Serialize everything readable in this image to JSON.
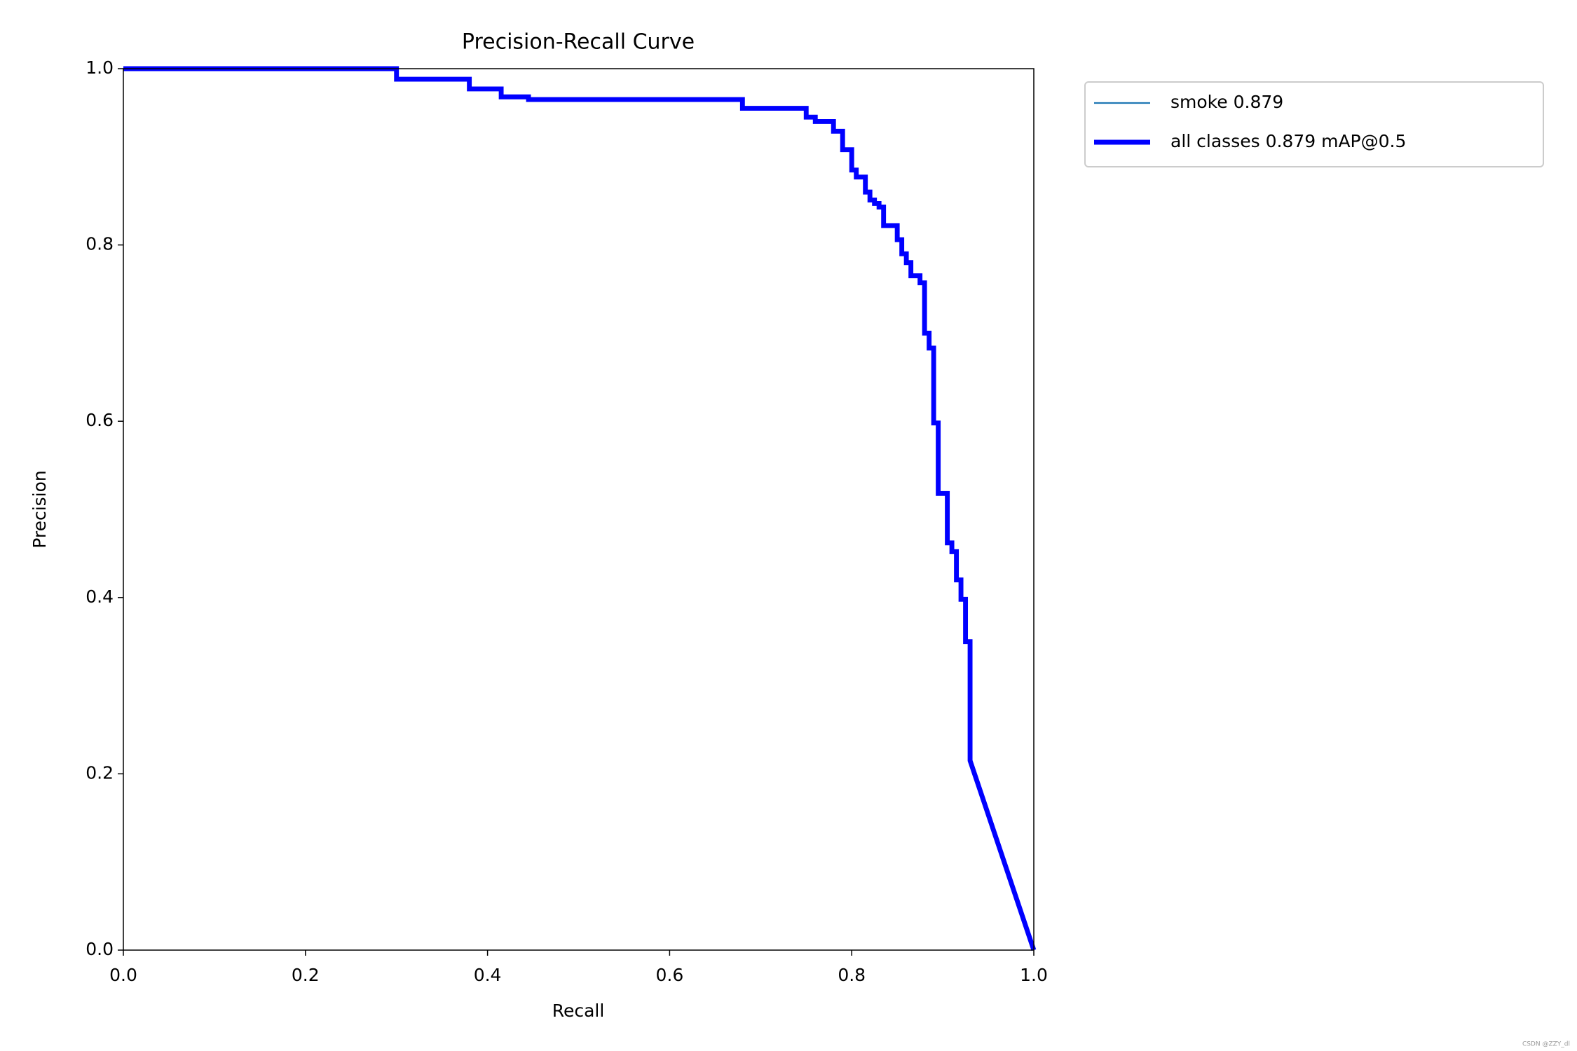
{
  "chart_data": {
    "type": "line",
    "title": "Precision-Recall Curve",
    "x_label": "Recall",
    "y_label": "Precision",
    "x": [
      0,
      0.3,
      0.3,
      0.38,
      0.38,
      0.415,
      0.415,
      0.445,
      0.445,
      0.68,
      0.68,
      0.75,
      0.75,
      0.76,
      0.76,
      0.78,
      0.78,
      0.79,
      0.79,
      0.8,
      0.8,
      0.805,
      0.805,
      0.815,
      0.815,
      0.82,
      0.82,
      0.825,
      0.825,
      0.83,
      0.83,
      0.835,
      0.835,
      0.85,
      0.85,
      0.855,
      0.855,
      0.86,
      0.86,
      0.865,
      0.865,
      0.875,
      0.875,
      0.88,
      0.88,
      0.885,
      0.885,
      0.89,
      0.89,
      0.895,
      0.895,
      0.905,
      0.905,
      0.91,
      0.91,
      0.915,
      0.915,
      0.92,
      0.92,
      0.925,
      0.925,
      0.93,
      0.93,
      1.0
    ],
    "series": [
      {
        "name": "smoke 0.879",
        "color": "#1f77b4",
        "linewidth": 1,
        "values": [
          1.0,
          1.0,
          0.988,
          0.988,
          0.977,
          0.977,
          0.968,
          0.968,
          0.965,
          0.965,
          0.955,
          0.955,
          0.945,
          0.945,
          0.94,
          0.94,
          0.929,
          0.929,
          0.908,
          0.908,
          0.885,
          0.885,
          0.877,
          0.877,
          0.86,
          0.86,
          0.851,
          0.851,
          0.847,
          0.847,
          0.843,
          0.843,
          0.822,
          0.822,
          0.806,
          0.806,
          0.79,
          0.79,
          0.78,
          0.78,
          0.765,
          0.765,
          0.757,
          0.757,
          0.7,
          0.7,
          0.683,
          0.683,
          0.598,
          0.598,
          0.518,
          0.518,
          0.462,
          0.462,
          0.452,
          0.452,
          0.42,
          0.42,
          0.398,
          0.398,
          0.35,
          0.35,
          0.215,
          0.0
        ]
      },
      {
        "name": "all classes 0.879 mAP@0.5",
        "color": "#0000ff",
        "linewidth": 3,
        "values": [
          1.0,
          1.0,
          0.988,
          0.988,
          0.977,
          0.977,
          0.968,
          0.968,
          0.965,
          0.965,
          0.955,
          0.955,
          0.945,
          0.945,
          0.94,
          0.94,
          0.929,
          0.929,
          0.908,
          0.908,
          0.885,
          0.885,
          0.877,
          0.877,
          0.86,
          0.86,
          0.851,
          0.851,
          0.847,
          0.847,
          0.843,
          0.843,
          0.822,
          0.822,
          0.806,
          0.806,
          0.79,
          0.79,
          0.78,
          0.78,
          0.765,
          0.765,
          0.757,
          0.757,
          0.7,
          0.7,
          0.683,
          0.683,
          0.598,
          0.598,
          0.518,
          0.518,
          0.462,
          0.462,
          0.452,
          0.452,
          0.42,
          0.42,
          0.398,
          0.398,
          0.35,
          0.35,
          0.215,
          0.0
        ]
      }
    ],
    "xlim": [
      0,
      1
    ],
    "ylim": [
      0,
      1
    ],
    "xticks": [
      {
        "value": 0,
        "label": "0.0"
      },
      0.2,
      0.4,
      0.6,
      0.8,
      {
        "value": 1,
        "label": "1.0"
      }
    ],
    "yticks": [
      {
        "value": 0,
        "label": "0.0"
      },
      0.2,
      0.4,
      0.6,
      0.8,
      {
        "value": 1,
        "label": "1.0"
      }
    ],
    "grid": false,
    "legend": "outside-upper-right",
    "watermark": "CSDN @ZZY_dl"
  }
}
